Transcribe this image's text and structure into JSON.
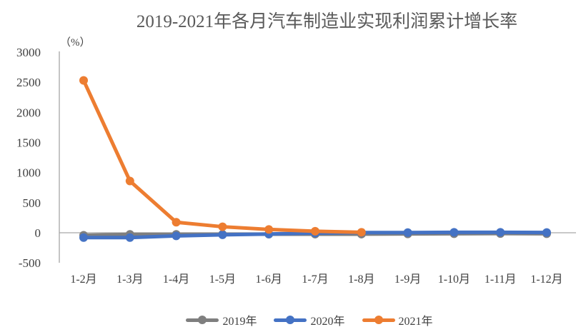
{
  "chart_data": {
    "type": "line",
    "title": "2019-2021年各月汽车制造业实现利润累计增长率",
    "unit_label": "（%）",
    "categories": [
      "1-2月",
      "1-3月",
      "1-4月",
      "1-5月",
      "1-6月",
      "1-7月",
      "1-8月",
      "1-9月",
      "1-10月",
      "1-11月",
      "1-12月"
    ],
    "series": [
      {
        "id": "2019",
        "name": "2019年",
        "color": "#7F7F7F",
        "values": [
          -42,
          -27,
          -26,
          -25,
          -24,
          -23,
          -23,
          -19,
          -16,
          -14,
          -16
        ]
      },
      {
        "id": "2020",
        "name": "2020年",
        "color": "#4472C4",
        "values": [
          -80,
          -80,
          -52,
          -34,
          -21,
          -6,
          3,
          3,
          7,
          8,
          4
        ]
      },
      {
        "id": "2021",
        "name": "2021年",
        "color": "#ED7D31",
        "values": [
          2530,
          860,
          175,
          100,
          55,
          25,
          8,
          null,
          null,
          null,
          null
        ]
      }
    ],
    "yticks": [
      3000,
      2500,
      2000,
      1500,
      1000,
      500,
      0,
      -500
    ],
    "ylim": [
      -500,
      3000
    ],
    "ytick_step": 500,
    "grid": false,
    "legend_position": "bottom",
    "axis_color": "#A6A6A6",
    "tick_label_color": "#3F3F3F"
  }
}
